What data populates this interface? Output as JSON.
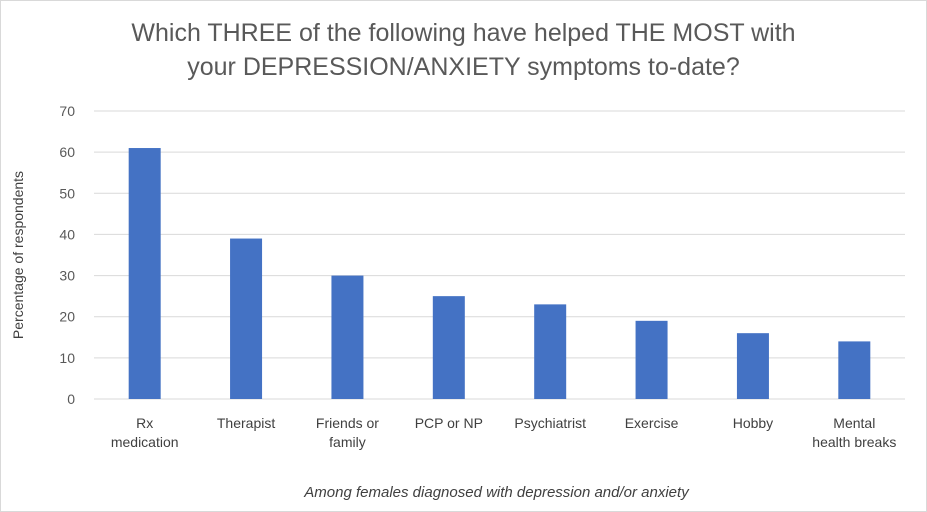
{
  "chart_data": {
    "type": "bar",
    "title": [
      "Which THREE of the following have helped THE MOST with",
      "your DEPRESSION/ANXIETY symptoms to-date?"
    ],
    "ylabel": "Percentage of respondents",
    "xlabel": "Among females diagnosed with depression and/or anxiety",
    "categories": [
      [
        "Rx",
        "medication"
      ],
      [
        "Therapist"
      ],
      [
        "Friends or",
        "family"
      ],
      [
        "PCP or NP"
      ],
      [
        "Psychiatrist"
      ],
      [
        "Exercise"
      ],
      [
        "Hobby"
      ],
      [
        "Mental",
        "health breaks"
      ]
    ],
    "values": [
      61,
      39,
      30,
      25,
      23,
      19,
      16,
      14
    ],
    "ylim": [
      0,
      70
    ],
    "yticks": [
      0,
      10,
      20,
      30,
      40,
      50,
      60,
      70
    ],
    "grid": true,
    "bar_color": "#4472c4",
    "grid_color": "#d9d9d9"
  }
}
